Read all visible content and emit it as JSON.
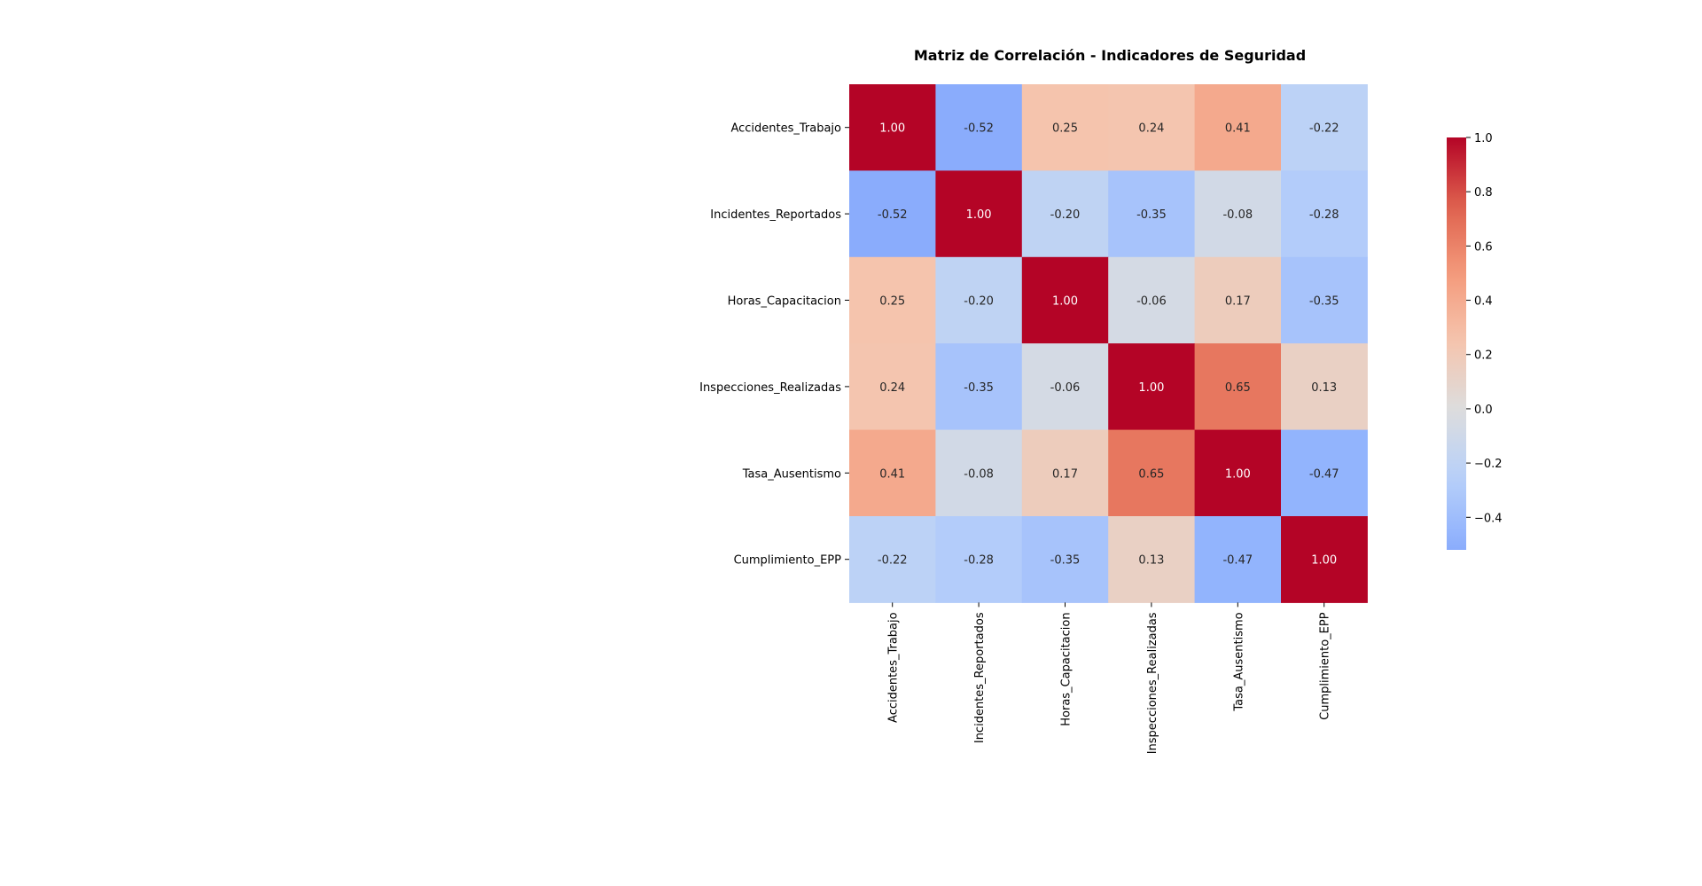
{
  "chart_data": {
    "type": "heatmap",
    "title": "Matriz de Correlación - Indicadores de Seguridad",
    "xlabel": "",
    "ylabel": "",
    "colormap": "coolwarm",
    "legend": "right",
    "grid": false,
    "labels": [
      "Accidentes_Trabajo",
      "Incidentes_Reportados",
      "Horas_Capacitacion",
      "Inspecciones_Realizadas",
      "Tasa_Ausentismo",
      "Cumplimiento_EPP"
    ],
    "matrix": [
      [
        1.0,
        -0.52,
        0.25,
        0.24,
        0.41,
        -0.22
      ],
      [
        -0.52,
        1.0,
        -0.2,
        -0.35,
        -0.08,
        -0.28
      ],
      [
        0.25,
        -0.2,
        1.0,
        -0.06,
        0.17,
        -0.35
      ],
      [
        0.24,
        -0.35,
        -0.06,
        1.0,
        0.65,
        0.13
      ],
      [
        0.41,
        -0.08,
        0.17,
        0.65,
        1.0,
        -0.47
      ],
      [
        -0.22,
        -0.28,
        -0.35,
        0.13,
        -0.47,
        1.0
      ]
    ],
    "value_format": "0.00",
    "colorbar": {
      "vmin": -0.52,
      "vmax": 1.0,
      "ticks": [
        -0.4,
        -0.2,
        0.0,
        0.2,
        0.4,
        0.6,
        0.8,
        1.0
      ],
      "tick_labels": [
        "−0.4",
        "−0.2",
        "0.0",
        "0.2",
        "0.4",
        "0.6",
        "0.8",
        "1.0"
      ]
    }
  }
}
